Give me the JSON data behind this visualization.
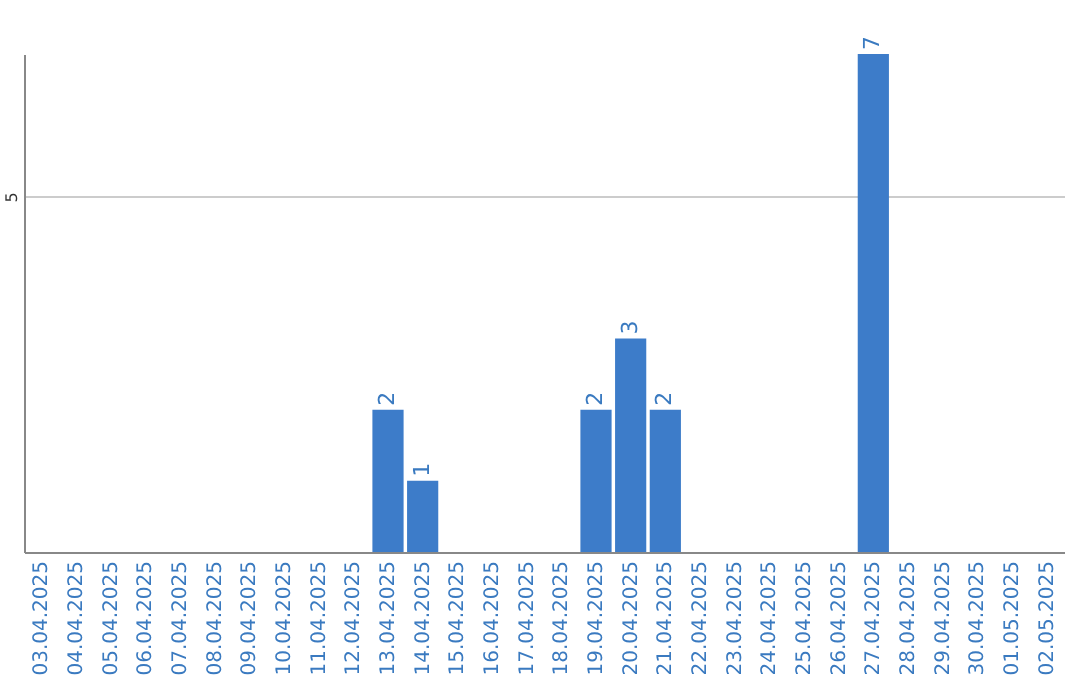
{
  "chart_data": {
    "type": "bar",
    "categories": [
      "03.04.2025",
      "04.04.2025",
      "05.04.2025",
      "06.04.2025",
      "07.04.2025",
      "08.04.2025",
      "09.04.2025",
      "10.04.2025",
      "11.04.2025",
      "12.04.2025",
      "13.04.2025",
      "14.04.2025",
      "15.04.2025",
      "16.04.2025",
      "17.04.2025",
      "18.04.2025",
      "19.04.2025",
      "20.04.2025",
      "21.04.2025",
      "22.04.2025",
      "23.04.2025",
      "24.04.2025",
      "25.04.2025",
      "26.04.2025",
      "27.04.2025",
      "28.04.2025",
      "29.04.2025",
      "30.04.2025",
      "01.05.2025",
      "02.05.2025"
    ],
    "values": [
      0,
      0,
      0,
      0,
      0,
      0,
      0,
      0,
      0,
      0,
      2,
      1,
      0,
      0,
      0,
      0,
      2,
      3,
      2,
      0,
      0,
      0,
      0,
      0,
      7,
      0,
      0,
      0,
      0,
      0
    ],
    "value_labels": [
      null,
      null,
      null,
      null,
      null,
      null,
      null,
      null,
      null,
      null,
      "2",
      "1",
      null,
      null,
      null,
      null,
      "2",
      "3",
      "2",
      null,
      null,
      null,
      null,
      null,
      "7",
      null,
      null,
      null,
      null,
      null
    ],
    "color": "#3d7cc9",
    "ylim": [
      0,
      7
    ],
    "yticks": [
      5
    ],
    "grid": "y"
  }
}
